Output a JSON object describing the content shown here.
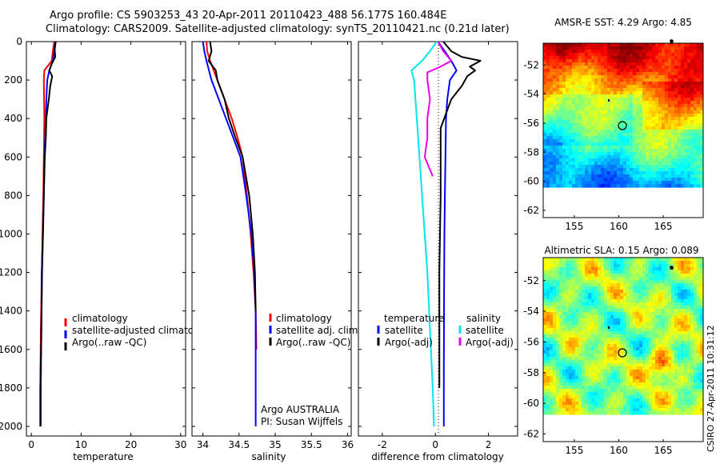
{
  "figure": {
    "title_line1": "Argo profile: CS 5903253_43 20-Apr-2011 20110423_488 56.177S 160.484E",
    "title_line2": "Climatology: CARS2009. Satellite-adjusted climatology: synTS_20110421.nc (0.21d later)",
    "credit": "CSIRO 27-Apr-2011 10:31:12",
    "attribution_line1": "Argo AUSTRALIA",
    "attribution_line2": "PI: Susan Wijffels"
  },
  "colors": {
    "climatology": "#ff0000",
    "satellite": "#0000ff",
    "argo": "#000000",
    "sat_diff_sal": "#00e5ee",
    "argo_diff_sal": "#ee00ee",
    "no_data": "#ffffff"
  },
  "chart_data": [
    {
      "type": "line",
      "panel": "temperature",
      "xlabel": "temperature",
      "ylabel": "",
      "xlim": [
        -1,
        31
      ],
      "ylim": [
        2050,
        0
      ],
      "xticks": [
        0,
        10,
        20,
        30
      ],
      "yticks": [
        0,
        200,
        400,
        600,
        800,
        1000,
        1200,
        1400,
        1600,
        1800,
        2000
      ],
      "legend": "lower-center",
      "series": [
        {
          "name": "climatology",
          "color": "#ff0000",
          "x": [
            4.6,
            4.3,
            4.1,
            2.6,
            2.5,
            2.55,
            2.6,
            2.55,
            2.5,
            2.4,
            2.25,
            2.1,
            1.9,
            1.8,
            1.8
          ],
          "y": [
            0,
            50,
            100,
            150,
            200,
            300,
            400,
            500,
            600,
            800,
            1000,
            1200,
            1500,
            1800,
            2000
          ]
        },
        {
          "name": "satellite-adjusted climatology",
          "color": "#0000ff",
          "x": [
            4.8,
            4.6,
            4.3,
            3.6,
            3.2,
            3.0,
            2.9,
            2.8,
            2.6,
            2.5,
            2.35,
            2.15,
            2.0,
            1.9,
            1.9
          ],
          "y": [
            0,
            50,
            100,
            150,
            200,
            300,
            400,
            500,
            600,
            800,
            1000,
            1200,
            1500,
            1800,
            2000
          ]
        },
        {
          "name": "Argo(..raw -QC)",
          "color": "#000000",
          "x": [
            4.9,
            4.7,
            4.8,
            4.0,
            3.6,
            4.2,
            3.8,
            3.5,
            3.0,
            2.9,
            2.7,
            2.5,
            2.3,
            2.1,
            2.0,
            1.8,
            1.8
          ],
          "y": [
            0,
            40,
            80,
            120,
            150,
            180,
            230,
            300,
            400,
            500,
            600,
            800,
            1000,
            1200,
            1500,
            1800,
            2000
          ]
        }
      ]
    },
    {
      "type": "line",
      "panel": "salinity",
      "xlabel": "salinity",
      "ylabel": "",
      "xlim": [
        33.85,
        36.05
      ],
      "ylim": [
        2050,
        0
      ],
      "xticks": [
        34,
        34.5,
        35,
        35.5,
        36
      ],
      "xticklabels": [
        "34",
        "34.5",
        "35",
        "35.5",
        "36"
      ],
      "legend": "lower-center",
      "series": [
        {
          "name": "climatology",
          "color": "#ff0000",
          "x": [
            34.05,
            34.06,
            34.1,
            34.2,
            34.3,
            34.4,
            34.48,
            34.55,
            34.61,
            34.66,
            34.7,
            34.73,
            34.74
          ],
          "y": [
            0,
            50,
            100,
            200,
            300,
            400,
            500,
            600,
            800,
            1000,
            1200,
            1400,
            1600
          ]
        },
        {
          "name": "satellite adj. clim.",
          "color": "#0000ff",
          "x": [
            34.0,
            34.02,
            34.05,
            34.12,
            34.22,
            34.32,
            34.42,
            34.52,
            34.6,
            34.67,
            34.71,
            34.73,
            34.73,
            34.73
          ],
          "y": [
            0,
            50,
            100,
            200,
            300,
            400,
            500,
            600,
            800,
            1000,
            1200,
            1400,
            1600,
            2000
          ]
        },
        {
          "name": "Argo(..raw -QC)",
          "color": "#000000",
          "x": [
            34.1,
            34.12,
            34.08,
            34.18,
            34.2,
            34.3,
            34.36,
            34.45,
            34.55,
            34.64,
            34.69,
            34.72,
            34.73
          ],
          "y": [
            0,
            50,
            100,
            150,
            200,
            300,
            400,
            500,
            600,
            800,
            1000,
            1200,
            1400
          ]
        }
      ]
    },
    {
      "type": "line",
      "panel": "difference",
      "xlabel": "difference from climatology",
      "ylabel": "",
      "xlim": [
        -2.9,
        3.1
      ],
      "ylim": [
        2050,
        0
      ],
      "xticks": [
        -2,
        0,
        2
      ],
      "legend": "lower-center",
      "legend_groups": [
        "temperature",
        "salinity"
      ],
      "series": [
        {
          "name": "satellite",
          "group": "temperature",
          "color": "#0000ff",
          "x": [
            0.1,
            0.35,
            0.6,
            0.8,
            0.55,
            0.45,
            0.4,
            0.38,
            0.36,
            0.34,
            0.33,
            0.32,
            0.32
          ],
          "y": [
            0,
            50,
            100,
            150,
            200,
            300,
            400,
            600,
            800,
            1000,
            1300,
            1700,
            2000
          ]
        },
        {
          "name": "Argo(-adj)",
          "group": "temperature",
          "color": "#000000",
          "x": [
            0.3,
            0.6,
            1.0,
            1.7,
            1.3,
            1.5,
            1.2,
            1.0,
            0.6,
            0.2,
            0.2,
            0.2,
            0.15,
            0.15
          ],
          "y": [
            0,
            50,
            80,
            100,
            130,
            150,
            180,
            230,
            300,
            450,
            600,
            800,
            1200,
            1800
          ]
        },
        {
          "name": "satellite",
          "group": "salinity",
          "color": "#00e5ee",
          "x": [
            0.05,
            -0.2,
            -0.5,
            -0.9,
            -0.8,
            -0.75,
            -0.7,
            -0.6,
            -0.5,
            -0.4,
            -0.3,
            -0.2,
            -0.1,
            -0.05
          ],
          "y": [
            0,
            50,
            100,
            150,
            200,
            300,
            400,
            600,
            800,
            1000,
            1200,
            1500,
            1800,
            2000
          ]
        },
        {
          "name": "Argo(-adj)",
          "group": "salinity",
          "color": "#ee00ee",
          "x": [
            0.1,
            0.3,
            0.6,
            0.2,
            -0.3,
            -0.3,
            -0.2,
            -0.3,
            -0.3,
            -0.4,
            -0.1
          ],
          "y": [
            0,
            50,
            100,
            130,
            160,
            200,
            300,
            400,
            500,
            600,
            700
          ]
        }
      ]
    },
    {
      "type": "heatmap",
      "panel": "sst-map",
      "title": "AMSR-E SST: 4.29 Argo: 4.85",
      "xlim": [
        151.5,
        169.5
      ],
      "ylim": [
        -62.5,
        -50.5
      ],
      "xticks": [
        155,
        160,
        165
      ],
      "yticks": [
        -52,
        -54,
        -56,
        -58,
        -60,
        -62
      ],
      "grid": false,
      "argo_position": {
        "lon": 160.484,
        "lat": -56.177
      },
      "no_data_below_lat": -60
    },
    {
      "type": "heatmap",
      "panel": "sla-map",
      "title": "Altimetric SLA: 0.15 Argo: 0.089",
      "xlim": [
        151.5,
        169.5
      ],
      "ylim": [
        -62.5,
        -50.5
      ],
      "xticks": [
        155,
        160,
        165
      ],
      "yticks": [
        -52,
        -54,
        -56,
        -58,
        -60,
        -62
      ],
      "grid": false,
      "argo_position": {
        "lon": 160.484,
        "lat": -56.177
      },
      "no_data_below_lat": -60
    }
  ]
}
